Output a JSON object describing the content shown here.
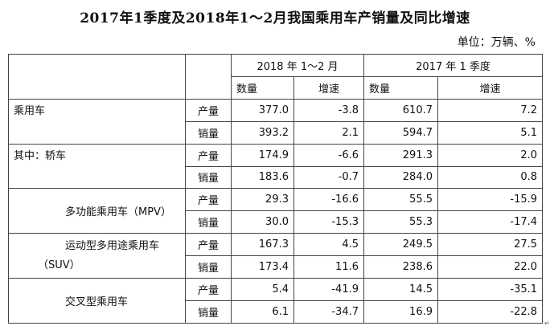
{
  "title": "2017年1季度及2018年1～2月我国乘用车产销量及同比增速",
  "unit": "单位：万辆、%",
  "table": {
    "period_headers": [
      "2018 年 1～2 月",
      "2017 年 1 季度"
    ],
    "sub_headers": [
      "数量",
      "增速",
      "数量",
      "增速"
    ],
    "categories": [
      {
        "name": "乘用车",
        "rows": [
          {
            "metric": "产量",
            "values": [
              "377.0",
              "-3.8",
              "610.7",
              "7.2"
            ]
          },
          {
            "metric": "销量",
            "values": [
              "393.2",
              "2.1",
              "594.7",
              "5.1"
            ]
          }
        ]
      },
      {
        "name": "其中：轿车",
        "rows": [
          {
            "metric": "产量",
            "values": [
              "174.9",
              "-6.6",
              "291.3",
              "2.0"
            ]
          },
          {
            "metric": "销量",
            "values": [
              "183.6",
              "-0.7",
              "284.0",
              "0.8"
            ]
          }
        ]
      },
      {
        "name": "多功能乘用车（MPV）",
        "rows": [
          {
            "metric": "产量",
            "values": [
              "29.3",
              "-16.6",
              "55.5",
              "-15.9"
            ]
          },
          {
            "metric": "销量",
            "values": [
              "30.0",
              "-15.3",
              "55.3",
              "-17.4"
            ]
          }
        ]
      },
      {
        "name_line1": "运动型多用途乘用车",
        "name_line2": "（SUV）",
        "rows": [
          {
            "metric": "产量",
            "values": [
              "167.3",
              "4.5",
              "249.5",
              "27.5"
            ]
          },
          {
            "metric": "销量",
            "values": [
              "173.4",
              "11.6",
              "238.6",
              "22.0"
            ]
          }
        ]
      },
      {
        "name": "交叉型乘用车",
        "rows": [
          {
            "metric": "产量",
            "values": [
              "5.4",
              "-41.9",
              "14.5",
              "-35.1"
            ]
          },
          {
            "metric": "销量",
            "values": [
              "6.1",
              "-34.7",
              "16.9",
              "-22.8"
            ]
          }
        ]
      }
    ]
  },
  "corner_mark": "↵"
}
